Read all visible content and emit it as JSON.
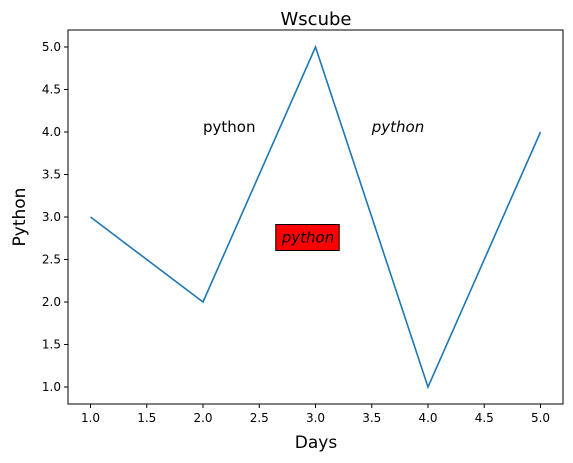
{
  "chart_data": {
    "type": "line",
    "title": "Wscube",
    "xlabel": "Days",
    "ylabel": "Python",
    "x": [
      1,
      2,
      3,
      4,
      5
    ],
    "series": [
      {
        "values": [
          3,
          2,
          5,
          1,
          4
        ],
        "color": "#1f77b4"
      }
    ],
    "xlim": [
      0.8,
      5.2
    ],
    "ylim": [
      0.8,
      5.2
    ],
    "xticks": [
      1.0,
      1.5,
      2.0,
      2.5,
      3.0,
      3.5,
      4.0,
      4.5,
      5.0
    ],
    "xtick_labels": [
      "1.0",
      "1.5",
      "2.0",
      "2.5",
      "3.0",
      "3.5",
      "4.0",
      "4.5",
      "5.0"
    ],
    "yticks": [
      1.0,
      1.5,
      2.0,
      2.5,
      3.0,
      3.5,
      4.0,
      4.5,
      5.0
    ],
    "ytick_labels": [
      "1.0",
      "1.5",
      "2.0",
      "2.5",
      "3.0",
      "3.5",
      "4.0",
      "4.5",
      "5.0"
    ],
    "grid": false,
    "annotations": [
      {
        "text": "python",
        "x": 2.0,
        "y": 4.0,
        "style": "normal"
      },
      {
        "text": "python",
        "x": 3.5,
        "y": 4.0,
        "style": "italic"
      },
      {
        "text": "python",
        "x": 2.7,
        "y": 2.7,
        "style": "italic",
        "box_color": "#ff0000"
      }
    ]
  }
}
